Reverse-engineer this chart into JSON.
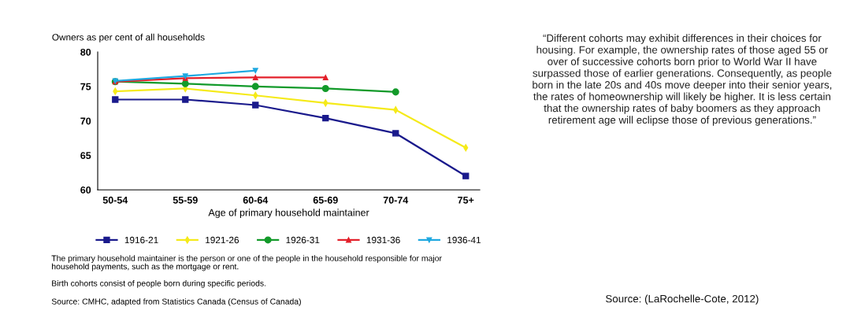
{
  "chart_data": {
    "type": "line",
    "ylabel": "Owners as per cent of all households",
    "xlabel": "Age of primary household maintainer",
    "categories": [
      "50-54",
      "55-59",
      "60-64",
      "65-69",
      "70-74",
      "75+"
    ],
    "ylim": [
      60,
      80
    ],
    "yticks": [
      60,
      65,
      70,
      75,
      80
    ],
    "grid": false,
    "legend": "bottom",
    "series": [
      {
        "name": "1916-21",
        "color": "#1a1a8c",
        "marker": "square",
        "values": [
          73.1,
          73.1,
          72.3,
          70.4,
          68.2,
          62.0
        ]
      },
      {
        "name": "1921-26",
        "color": "#f5ea1a",
        "marker": "diamond",
        "values": [
          74.3,
          74.7,
          73.7,
          72.6,
          71.6,
          66.1
        ]
      },
      {
        "name": "1926-31",
        "color": "#139a2a",
        "marker": "circle",
        "values": [
          75.7,
          75.4,
          75.0,
          74.7,
          74.2,
          null
        ]
      },
      {
        "name": "1931-36",
        "color": "#e3202a",
        "marker": "triangle",
        "values": [
          75.7,
          76.2,
          76.3,
          76.3,
          null,
          null
        ]
      },
      {
        "name": "1936-41",
        "color": "#1ea8e0",
        "marker": "triangle_down",
        "values": [
          75.8,
          76.5,
          77.3,
          null,
          null,
          null
        ]
      }
    ],
    "annotations": [
      "The primary household maintainer is the person or one of the people in the household responsible for major household payments, such as the mortgage or rent.",
      "Birth cohorts consist of people born during specific periods.",
      "Source: CMHC, adapted from Statistics Canada (Census of Canada)",
      "“Different cohorts may exhibit differences in their choices for housing. For example, the ownership rates of those aged 55 or over of successive cohorts born prior to World War II have surpassed those of earlier generations. Consequently, as people born in the late 20s and 40s move deeper into their senior years, the rates of homeownership will likely be higher. It is less certain that the ownership rates of baby boomers as they approach retirement age will eclipse those of previous generations.”",
      "Source: (LaRochelle-Cote, 2012)"
    ]
  }
}
